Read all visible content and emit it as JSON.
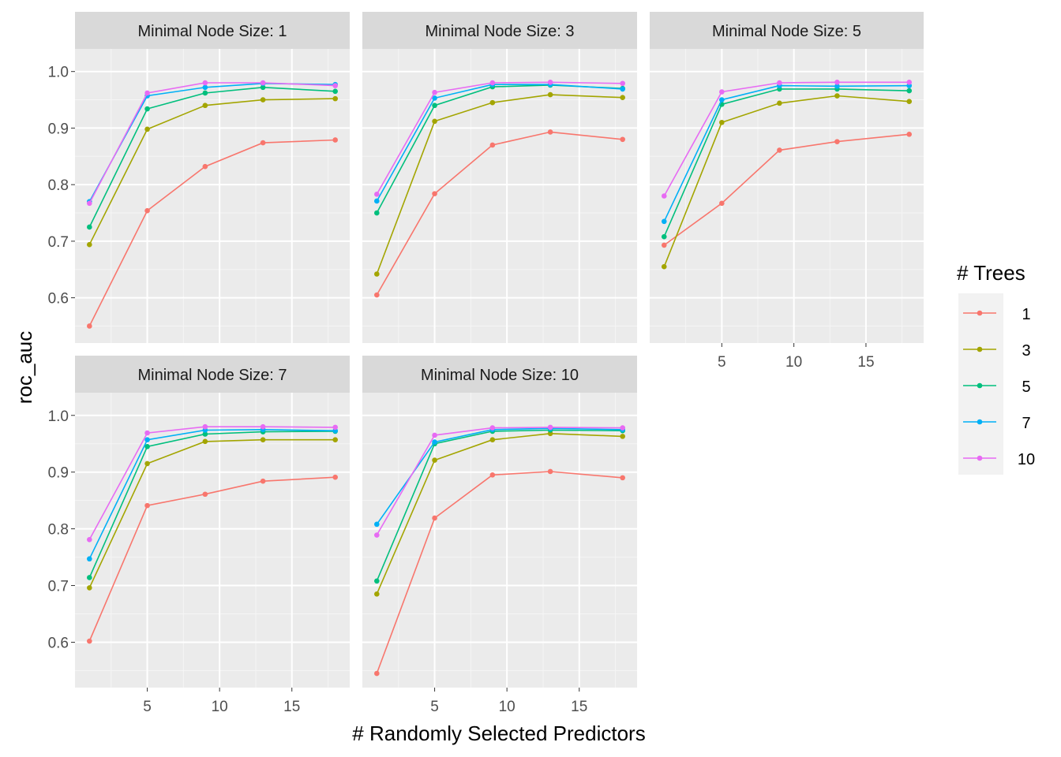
{
  "chart_data": {
    "type": "line",
    "xlabel": "# Randomly Selected Predictors",
    "ylabel": "roc_auc",
    "xlim": [
      0,
      19
    ],
    "ylim": [
      0.52,
      1.04
    ],
    "x_ticks": [
      5,
      10,
      15
    ],
    "y_ticks": [
      0.6,
      0.7,
      0.8,
      0.9,
      1.0
    ],
    "y_tick_labels": [
      "0.6",
      "0.7",
      "0.8",
      "0.9",
      "1.0"
    ],
    "x": [
      1,
      5,
      9,
      13,
      18
    ],
    "legend": {
      "title": "# Trees",
      "placement": "right",
      "entries": [
        {
          "label": "1",
          "color": "#F8766D"
        },
        {
          "label": "3",
          "color": "#A3A500"
        },
        {
          "label": "5",
          "color": "#00BF7D"
        },
        {
          "label": "7",
          "color": "#00B0F6"
        },
        {
          "label": "10",
          "color": "#E76BF3"
        }
      ]
    },
    "facets": [
      {
        "label": "Minimal Node Size: 1",
        "series": [
          {
            "name": "1",
            "values": [
              0.55,
              0.754,
              0.832,
              0.874,
              0.879
            ]
          },
          {
            "name": "3",
            "values": [
              0.694,
              0.898,
              0.94,
              0.95,
              0.952
            ]
          },
          {
            "name": "5",
            "values": [
              0.725,
              0.934,
              0.962,
              0.972,
              0.965
            ]
          },
          {
            "name": "7",
            "values": [
              0.77,
              0.957,
              0.972,
              0.979,
              0.977
            ]
          },
          {
            "name": "10",
            "values": [
              0.767,
              0.962,
              0.98,
              0.98,
              0.975
            ]
          }
        ]
      },
      {
        "label": "Minimal Node Size: 3",
        "series": [
          {
            "name": "1",
            "values": [
              0.605,
              0.784,
              0.87,
              0.893,
              0.88
            ]
          },
          {
            "name": "3",
            "values": [
              0.642,
              0.912,
              0.945,
              0.959,
              0.954
            ]
          },
          {
            "name": "5",
            "values": [
              0.75,
              0.94,
              0.973,
              0.976,
              0.97
            ]
          },
          {
            "name": "7",
            "values": [
              0.771,
              0.953,
              0.977,
              0.977,
              0.969
            ]
          },
          {
            "name": "10",
            "values": [
              0.783,
              0.963,
              0.98,
              0.981,
              0.979
            ]
          }
        ]
      },
      {
        "label": "Minimal Node Size: 5",
        "series": [
          {
            "name": "1",
            "values": [
              0.693,
              0.767,
              0.861,
              0.876,
              0.889
            ]
          },
          {
            "name": "3",
            "values": [
              0.655,
              0.91,
              0.944,
              0.957,
              0.947
            ]
          },
          {
            "name": "5",
            "values": [
              0.708,
              0.942,
              0.969,
              0.969,
              0.966
            ]
          },
          {
            "name": "7",
            "values": [
              0.735,
              0.95,
              0.975,
              0.974,
              0.975
            ]
          },
          {
            "name": "10",
            "values": [
              0.78,
              0.964,
              0.98,
              0.981,
              0.981
            ]
          }
        ]
      },
      {
        "label": "Minimal Node Size: 7",
        "series": [
          {
            "name": "1",
            "values": [
              0.602,
              0.841,
              0.861,
              0.884,
              0.891
            ]
          },
          {
            "name": "3",
            "values": [
              0.696,
              0.915,
              0.954,
              0.957,
              0.957
            ]
          },
          {
            "name": "5",
            "values": [
              0.714,
              0.945,
              0.967,
              0.971,
              0.972
            ]
          },
          {
            "name": "7",
            "values": [
              0.747,
              0.957,
              0.974,
              0.975,
              0.973
            ]
          },
          {
            "name": "10",
            "values": [
              0.781,
              0.969,
              0.98,
              0.98,
              0.979
            ]
          }
        ]
      },
      {
        "label": "Minimal Node Size: 10",
        "series": [
          {
            "name": "1",
            "values": [
              0.545,
              0.819,
              0.895,
              0.901,
              0.89
            ]
          },
          {
            "name": "3",
            "values": [
              0.685,
              0.921,
              0.957,
              0.968,
              0.963
            ]
          },
          {
            "name": "5",
            "values": [
              0.708,
              0.95,
              0.972,
              0.974,
              0.973
            ]
          },
          {
            "name": "7",
            "values": [
              0.808,
              0.953,
              0.975,
              0.977,
              0.975
            ]
          },
          {
            "name": "10",
            "values": [
              0.789,
              0.965,
              0.978,
              0.979,
              0.978
            ]
          }
        ]
      }
    ]
  }
}
